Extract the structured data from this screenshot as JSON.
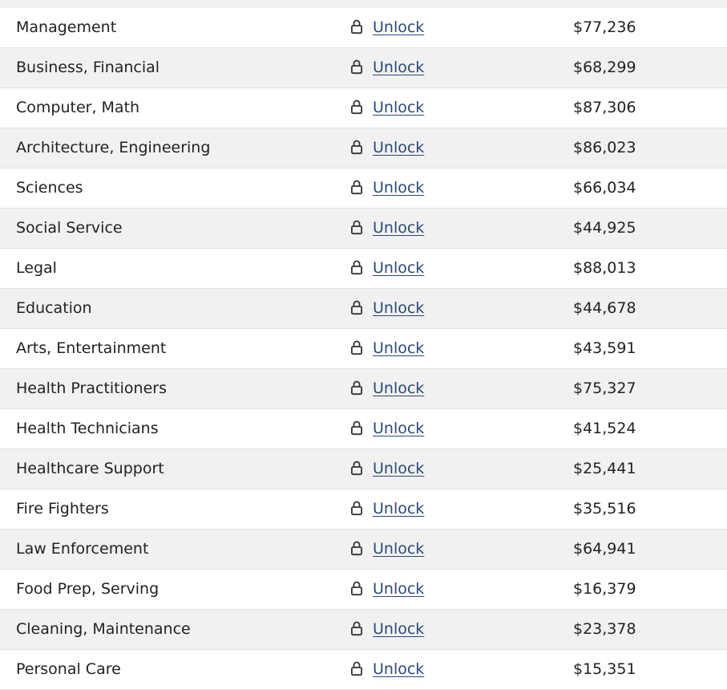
{
  "rows": [
    {
      "category": "Management",
      "action": "Unlock",
      "salary": "$77,236"
    },
    {
      "category": "Business, Financial",
      "action": "Unlock",
      "salary": "$68,299"
    },
    {
      "category": "Computer, Math",
      "action": "Unlock",
      "salary": "$87,306"
    },
    {
      "category": "Architecture, Engineering",
      "action": "Unlock",
      "salary": "$86,023"
    },
    {
      "category": "Sciences",
      "action": "Unlock",
      "salary": "$66,034"
    },
    {
      "category": "Social Service",
      "action": "Unlock",
      "salary": "$44,925"
    },
    {
      "category": "Legal",
      "action": "Unlock",
      "salary": "$88,013"
    },
    {
      "category": "Education",
      "action": "Unlock",
      "salary": "$44,678"
    },
    {
      "category": "Arts, Entertainment",
      "action": "Unlock",
      "salary": "$43,591"
    },
    {
      "category": "Health Practitioners",
      "action": "Unlock",
      "salary": "$75,327"
    },
    {
      "category": "Health Technicians",
      "action": "Unlock",
      "salary": "$41,524"
    },
    {
      "category": "Healthcare Support",
      "action": "Unlock",
      "salary": "$25,441"
    },
    {
      "category": "Fire Fighters",
      "action": "Unlock",
      "salary": "$35,516"
    },
    {
      "category": "Law Enforcement",
      "action": "Unlock",
      "salary": "$64,941"
    },
    {
      "category": "Food Prep, Serving",
      "action": "Unlock",
      "salary": "$16,379"
    },
    {
      "category": "Cleaning, Maintenance",
      "action": "Unlock",
      "salary": "$23,378"
    },
    {
      "category": "Personal Care",
      "action": "Unlock",
      "salary": "$15,351"
    }
  ],
  "icons": {
    "lock": "lock-icon"
  },
  "colors": {
    "link": "#2c4a78",
    "alt_row": "#f1f1f1",
    "text": "#222222"
  }
}
